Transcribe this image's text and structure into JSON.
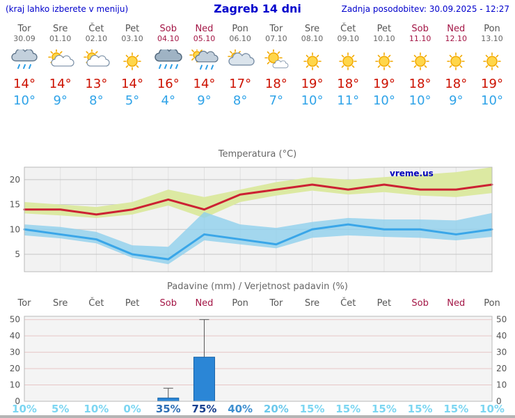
{
  "header": {
    "left_note": "(kraj lahko izberete v meniju)",
    "title": "Zagreb 14 dni",
    "updated": "Zadnja posodobitev: 30.09.2025 - 12:27"
  },
  "colors": {
    "header_blue": "#0000cc",
    "weekday": "#555555",
    "weekend_red": "#a31545",
    "tmax_red": "#cc1100",
    "tmin_blue": "#2fa3e8",
    "bar_blue": "#2b86d6"
  },
  "days": [
    {
      "name": "Tor",
      "date": "30.09",
      "weekend": false,
      "icon": "rain",
      "tmax": "14°",
      "tmin": "10°",
      "pop": "10%",
      "pop_color": "#7cd6f2"
    },
    {
      "name": "Sre",
      "date": "01.10",
      "weekend": false,
      "icon": "partly-cloudy",
      "tmax": "14°",
      "tmin": "9°",
      "pop": "5%",
      "pop_color": "#7cd6f2"
    },
    {
      "name": "Čet",
      "date": "02.10",
      "weekend": false,
      "icon": "partly-cloudy",
      "tmax": "13°",
      "tmin": "8°",
      "pop": "10%",
      "pop_color": "#7cd6f2"
    },
    {
      "name": "Pet",
      "date": "03.10",
      "weekend": false,
      "icon": "sunny",
      "tmax": "14°",
      "tmin": "5°",
      "pop": "0%",
      "pop_color": "#7cd6f2"
    },
    {
      "name": "Sob",
      "date": "04.10",
      "weekend": true,
      "icon": "heavy-rain",
      "tmax": "16°",
      "tmin": "4°",
      "pop": "35%",
      "pop_color": "#2f6fb5"
    },
    {
      "name": "Ned",
      "date": "05.10",
      "weekend": true,
      "icon": "rain-sun",
      "tmax": "14°",
      "tmin": "9°",
      "pop": "75%",
      "pop_color": "#173f8f"
    },
    {
      "name": "Pon",
      "date": "06.10",
      "weekend": false,
      "icon": "cloudy",
      "tmax": "17°",
      "tmin": "8°",
      "pop": "40%",
      "pop_color": "#3e8fd0"
    },
    {
      "name": "Tor",
      "date": "07.10",
      "weekend": false,
      "icon": "mostly-sunny",
      "tmax": "18°",
      "tmin": "7°",
      "pop": "20%",
      "pop_color": "#6cc9ec"
    },
    {
      "name": "Sre",
      "date": "08.10",
      "weekend": false,
      "icon": "sunny",
      "tmax": "19°",
      "tmin": "10°",
      "pop": "15%",
      "pop_color": "#7cd6f2"
    },
    {
      "name": "Čet",
      "date": "09.10",
      "weekend": false,
      "icon": "sunny",
      "tmax": "18°",
      "tmin": "11°",
      "pop": "15%",
      "pop_color": "#7cd6f2"
    },
    {
      "name": "Pet",
      "date": "10.10",
      "weekend": false,
      "icon": "sunny",
      "tmax": "19°",
      "tmin": "10°",
      "pop": "15%",
      "pop_color": "#7cd6f2"
    },
    {
      "name": "Sob",
      "date": "11.10",
      "weekend": true,
      "icon": "sunny",
      "tmax": "18°",
      "tmin": "10°",
      "pop": "15%",
      "pop_color": "#7cd6f2"
    },
    {
      "name": "Ned",
      "date": "12.10",
      "weekend": true,
      "icon": "sunny",
      "tmax": "18°",
      "tmin": "9°",
      "pop": "15%",
      "pop_color": "#7cd6f2"
    },
    {
      "name": "Pon",
      "date": "13.10",
      "weekend": false,
      "icon": "sunny",
      "tmax": "19°",
      "tmin": "10°",
      "pop": "10%",
      "pop_color": "#7cd6f2"
    }
  ],
  "chart_data": [
    {
      "type": "line",
      "title": "Temperatura (°C)",
      "watermark": "vreme.us",
      "x_labels": [
        "Tor",
        "Sre",
        "Čet",
        "Pet",
        "Sob",
        "Ned",
        "Pon",
        "Tor",
        "Sre",
        "Čet",
        "Pet",
        "Sob",
        "Ned",
        "Pon"
      ],
      "ylim": [
        1.5,
        22.5
      ],
      "yticks": [
        5,
        10,
        15,
        20
      ],
      "series": [
        {
          "name": "max-temperature",
          "color": "#cc2233",
          "values": [
            14,
            14,
            13,
            14,
            16,
            14,
            17,
            18,
            19,
            18,
            19,
            18,
            18,
            19
          ]
        },
        {
          "name": "min-temperature",
          "color": "#3aa6e8",
          "values": [
            10,
            9,
            8,
            5,
            4,
            9,
            8,
            7,
            10,
            11,
            10,
            10,
            9,
            10
          ]
        }
      ],
      "bands": [
        {
          "name": "max-temp-range",
          "color": "#dce9a2",
          "opacity": 1,
          "high": [
            15.5,
            15,
            14.5,
            15.5,
            18,
            16.5,
            18,
            19.5,
            20.5,
            20,
            20.5,
            21,
            21.5,
            22.5
          ],
          "low": [
            13.2,
            12.8,
            12.3,
            13,
            14.8,
            12.3,
            15.5,
            16.8,
            17.8,
            17,
            17.5,
            16.8,
            16.5,
            17.3
          ]
        },
        {
          "name": "min-temp-range",
          "color": "#8fd0ec",
          "opacity": 0.8,
          "high": [
            11,
            10.5,
            9.5,
            6.8,
            6.5,
            13.5,
            11,
            10.3,
            11.5,
            12.3,
            12,
            12,
            11.8,
            13.3
          ],
          "low": [
            8.8,
            8.2,
            7.2,
            4.3,
            3,
            7.8,
            7,
            6.2,
            8.3,
            8.8,
            8.5,
            8.3,
            7.8,
            8.5
          ]
        }
      ]
    },
    {
      "type": "bar",
      "title": "Padavine (mm) / Verjetnost padavin (%)",
      "x_labels": [
        "Tor",
        "Sre",
        "Čet",
        "Pet",
        "Sob",
        "Ned",
        "Pon",
        "Tor",
        "Sre",
        "Čet",
        "Pet",
        "Sob",
        "Ned",
        "Pon"
      ],
      "ylim": [
        0,
        52
      ],
      "yticks": [
        0,
        10,
        20,
        30,
        40,
        50
      ],
      "bars_mm": [
        0,
        0,
        0,
        0,
        2,
        27,
        0,
        0,
        0,
        0,
        0,
        0,
        0,
        0
      ],
      "whisker_max": [
        0,
        0,
        0,
        0,
        8,
        50,
        0,
        0,
        0,
        0,
        0,
        0,
        0,
        0
      ],
      "pop_percent": [
        10,
        5,
        10,
        0,
        35,
        75,
        40,
        20,
        15,
        15,
        15,
        15,
        15,
        10
      ]
    }
  ]
}
